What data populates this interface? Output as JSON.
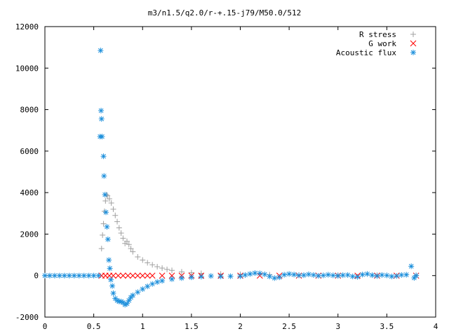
{
  "chart_data": {
    "type": "scatter",
    "title": "m3/n1.5/q2.0/r-+.15-j79/M50.0/512",
    "xlabel": "",
    "ylabel": "",
    "xlim": [
      0,
      4
    ],
    "ylim": [
      -2000,
      12000
    ],
    "x_ticks": [
      "0",
      "0.5",
      "1",
      "1.5",
      "2",
      "2.5",
      "3",
      "3.5",
      "4"
    ],
    "y_ticks": [
      "-2000",
      "0",
      "2000",
      "4000",
      "6000",
      "8000",
      "10000",
      "12000"
    ],
    "grid": false,
    "legend_position": "top-right",
    "series": [
      {
        "name": "R stress",
        "marker": "plus",
        "color": "#a0a0a0",
        "points": [
          [
            0.58,
            1300
          ],
          [
            0.59,
            1950
          ],
          [
            0.6,
            2500
          ],
          [
            0.61,
            3100
          ],
          [
            0.62,
            3600
          ],
          [
            0.63,
            3900
          ],
          [
            0.64,
            3850
          ],
          [
            0.66,
            3700
          ],
          [
            0.68,
            3500
          ],
          [
            0.7,
            3200
          ],
          [
            0.72,
            2900
          ],
          [
            0.74,
            2600
          ],
          [
            0.76,
            2300
          ],
          [
            0.78,
            2050
          ],
          [
            0.8,
            1800
          ],
          [
            0.82,
            1550
          ],
          [
            0.84,
            1650
          ],
          [
            0.86,
            1500
          ],
          [
            0.88,
            1300
          ],
          [
            0.9,
            1150
          ],
          [
            0.95,
            900
          ],
          [
            1.0,
            750
          ],
          [
            1.05,
            620
          ],
          [
            1.1,
            520
          ],
          [
            1.15,
            430
          ],
          [
            1.2,
            360
          ],
          [
            1.25,
            300
          ],
          [
            1.3,
            250
          ],
          [
            1.4,
            180
          ],
          [
            1.5,
            140
          ],
          [
            1.6,
            110
          ],
          [
            1.8,
            80
          ],
          [
            2.0,
            60
          ],
          [
            2.3,
            45
          ],
          [
            2.6,
            30
          ],
          [
            3.0,
            20
          ],
          [
            3.4,
            15
          ],
          [
            3.8,
            10
          ]
        ]
      },
      {
        "name": "G work",
        "marker": "cross",
        "color": "#ff0000",
        "points": [
          [
            0.58,
            0
          ],
          [
            0.62,
            0
          ],
          [
            0.66,
            0
          ],
          [
            0.7,
            0
          ],
          [
            0.75,
            0
          ],
          [
            0.8,
            0
          ],
          [
            0.85,
            0
          ],
          [
            0.9,
            0
          ],
          [
            0.95,
            0
          ],
          [
            1.0,
            0
          ],
          [
            1.05,
            0
          ],
          [
            1.1,
            0
          ],
          [
            1.2,
            0
          ],
          [
            1.3,
            0
          ],
          [
            1.4,
            0
          ],
          [
            1.5,
            0
          ],
          [
            1.6,
            0
          ],
          [
            1.8,
            0
          ],
          [
            2.0,
            0
          ],
          [
            2.2,
            0
          ],
          [
            2.4,
            0
          ],
          [
            2.6,
            0
          ],
          [
            2.8,
            0
          ],
          [
            3.0,
            0
          ],
          [
            3.2,
            0
          ],
          [
            3.4,
            0
          ],
          [
            3.6,
            0
          ],
          [
            3.8,
            0
          ]
        ]
      },
      {
        "name": "Acoustic flux",
        "marker": "star",
        "color": "#1e90dc",
        "points": [
          [
            0.0,
            0
          ],
          [
            0.05,
            0
          ],
          [
            0.1,
            0
          ],
          [
            0.15,
            0
          ],
          [
            0.2,
            0
          ],
          [
            0.25,
            0
          ],
          [
            0.3,
            0
          ],
          [
            0.35,
            0
          ],
          [
            0.4,
            0
          ],
          [
            0.45,
            0
          ],
          [
            0.5,
            0
          ],
          [
            0.55,
            0
          ],
          [
            0.57,
            10850
          ],
          [
            0.575,
            7950
          ],
          [
            0.58,
            7550
          ],
          [
            0.565,
            6700
          ],
          [
            0.585,
            6700
          ],
          [
            0.6,
            5750
          ],
          [
            0.605,
            4800
          ],
          [
            0.615,
            3900
          ],
          [
            0.625,
            3050
          ],
          [
            0.635,
            2350
          ],
          [
            0.645,
            1750
          ],
          [
            0.655,
            750
          ],
          [
            0.665,
            350
          ],
          [
            0.675,
            -200
          ],
          [
            0.69,
            -500
          ],
          [
            0.7,
            -850
          ],
          [
            0.72,
            -1100
          ],
          [
            0.74,
            -1200
          ],
          [
            0.76,
            -1250
          ],
          [
            0.78,
            -1250
          ],
          [
            0.8,
            -1300
          ],
          [
            0.82,
            -1400
          ],
          [
            0.84,
            -1350
          ],
          [
            0.86,
            -1200
          ],
          [
            0.88,
            -1050
          ],
          [
            0.9,
            -950
          ],
          [
            0.95,
            -800
          ],
          [
            1.0,
            -650
          ],
          [
            1.05,
            -520
          ],
          [
            1.1,
            -400
          ],
          [
            1.15,
            -310
          ],
          [
            1.2,
            -250
          ],
          [
            1.3,
            -170
          ],
          [
            1.4,
            -120
          ],
          [
            1.5,
            -80
          ],
          [
            1.6,
            -50
          ],
          [
            1.7,
            -20
          ],
          [
            1.8,
            -40
          ],
          [
            1.9,
            -30
          ],
          [
            2.0,
            -30
          ],
          [
            2.05,
            30
          ],
          [
            2.1,
            80
          ],
          [
            2.15,
            120
          ],
          [
            2.2,
            110
          ],
          [
            2.25,
            60
          ],
          [
            2.3,
            -40
          ],
          [
            2.35,
            -120
          ],
          [
            2.4,
            -80
          ],
          [
            2.45,
            40
          ],
          [
            2.5,
            80
          ],
          [
            2.55,
            50
          ],
          [
            2.6,
            10
          ],
          [
            2.65,
            20
          ],
          [
            2.7,
            60
          ],
          [
            2.75,
            30
          ],
          [
            2.8,
            -10
          ],
          [
            2.85,
            10
          ],
          [
            2.9,
            40
          ],
          [
            2.95,
            10
          ],
          [
            3.0,
            -10
          ],
          [
            3.05,
            20
          ],
          [
            3.1,
            30
          ],
          [
            3.15,
            -40
          ],
          [
            3.2,
            -60
          ],
          [
            3.25,
            50
          ],
          [
            3.3,
            80
          ],
          [
            3.35,
            20
          ],
          [
            3.4,
            -20
          ],
          [
            3.45,
            30
          ],
          [
            3.5,
            10
          ],
          [
            3.55,
            -40
          ],
          [
            3.6,
            -20
          ],
          [
            3.65,
            30
          ],
          [
            3.7,
            40
          ],
          [
            3.75,
            450
          ],
          [
            3.78,
            -110
          ],
          [
            3.8,
            0
          ]
        ]
      }
    ]
  }
}
